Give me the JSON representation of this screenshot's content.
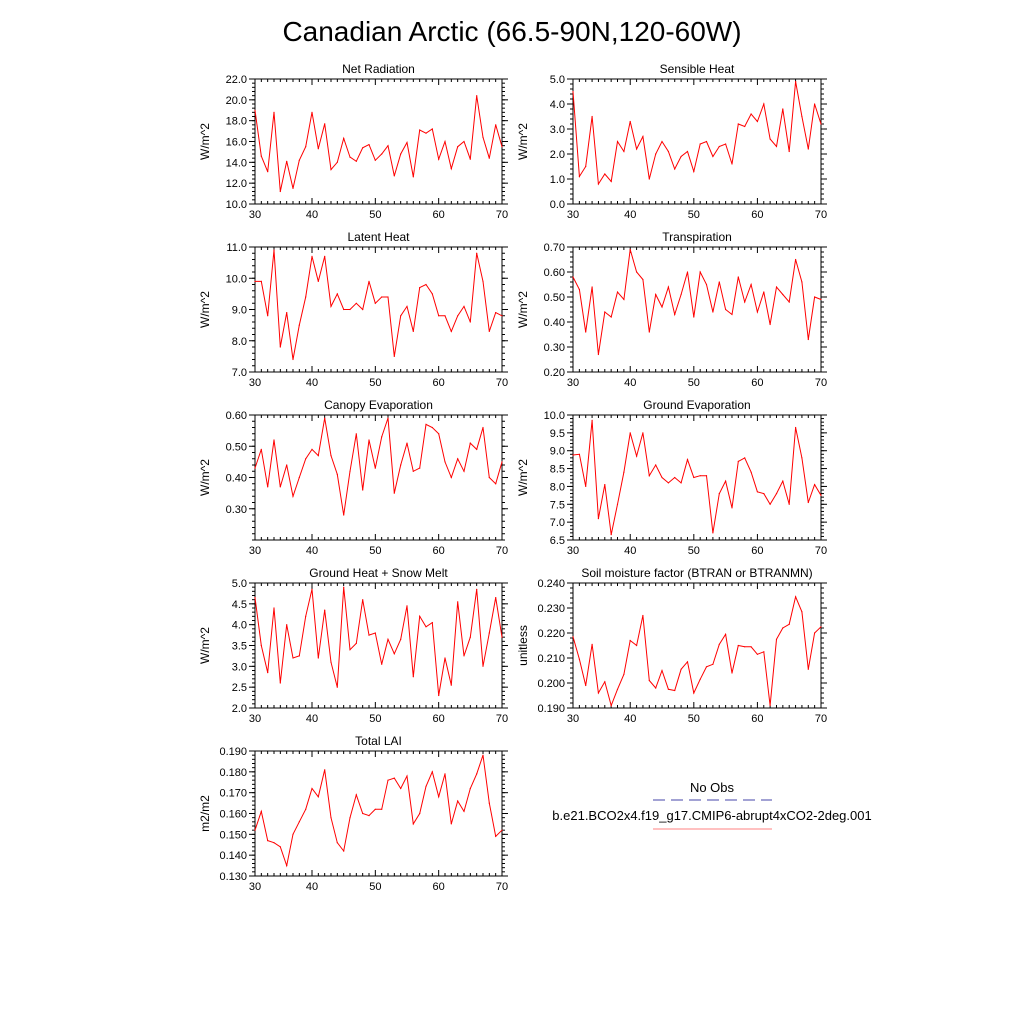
{
  "title": "Canadian Arctic (66.5-90N,120-60W)",
  "chart_data": [
    {
      "type": "line",
      "title": "Net Radiation",
      "ylabel": "W/m^2",
      "xlim": [
        31,
        70
      ],
      "ylim": [
        10.0,
        22.0
      ],
      "yticks": [
        "10.0",
        "12.0",
        "14.0",
        "16.0",
        "18.0",
        "20.0",
        "22.0"
      ],
      "xticks": [
        "30",
        "40",
        "50",
        "60",
        "70"
      ],
      "series": [
        {
          "name": "b.e21.BCO2x4.f19_g17.CMIP6-abrupt4xCO2-2deg.001",
          "color": "#ff0000",
          "x": [
            31,
            32,
            33,
            34,
            35,
            36,
            37,
            38,
            39,
            40,
            41,
            42,
            43,
            44,
            45,
            46,
            47,
            48,
            49,
            50,
            51,
            52,
            53,
            54,
            55,
            56,
            57,
            58,
            59,
            60,
            61,
            62,
            63,
            64,
            65,
            66,
            67,
            68,
            69,
            70
          ],
          "y": [
            19.0,
            14.6,
            13.1,
            18.8,
            11.2,
            14.1,
            11.5,
            14.2,
            15.5,
            18.8,
            15.3,
            17.7,
            13.3,
            14.0,
            16.3,
            14.5,
            14.1,
            15.4,
            15.7,
            14.2,
            14.8,
            15.6,
            12.7,
            14.8,
            15.9,
            12.6,
            17.1,
            16.8,
            17.2,
            14.3,
            16.0,
            13.4,
            15.5,
            16.0,
            14.3,
            20.4,
            16.4,
            14.4,
            17.6,
            15.5
          ]
        }
      ]
    },
    {
      "type": "line",
      "title": "Sensible Heat",
      "ylabel": "W/m^2",
      "xlim": [
        31,
        70
      ],
      "ylim": [
        0.0,
        5.0
      ],
      "yticks": [
        "0.0",
        "1.0",
        "2.0",
        "3.0",
        "4.0",
        "5.0"
      ],
      "xticks": [
        "30",
        "40",
        "50",
        "60",
        "70"
      ],
      "series": [
        {
          "name": "b.e21.BCO2x4.f19_g17.CMIP6-abrupt4xCO2-2deg.001",
          "color": "#ff0000",
          "x": [
            31,
            32,
            33,
            34,
            35,
            36,
            37,
            38,
            39,
            40,
            41,
            42,
            43,
            44,
            45,
            46,
            47,
            48,
            49,
            50,
            51,
            52,
            53,
            54,
            55,
            56,
            57,
            58,
            59,
            60,
            61,
            62,
            63,
            64,
            65,
            66,
            67,
            68,
            69,
            70
          ],
          "y": [
            4.5,
            1.1,
            1.5,
            3.5,
            0.8,
            1.2,
            0.9,
            2.5,
            2.1,
            3.3,
            2.2,
            2.7,
            1.0,
            2.0,
            2.5,
            2.1,
            1.4,
            1.9,
            2.1,
            1.3,
            2.4,
            2.5,
            1.9,
            2.3,
            2.4,
            1.6,
            3.2,
            3.1,
            3.6,
            3.3,
            4.0,
            2.6,
            2.3,
            3.8,
            2.1,
            4.9,
            3.5,
            2.2,
            4.0,
            3.2
          ]
        }
      ]
    },
    {
      "type": "line",
      "title": "Latent Heat",
      "ylabel": "W/m^2",
      "xlim": [
        31,
        70
      ],
      "ylim": [
        7.0,
        11.0
      ],
      "yticks": [
        "7.0",
        "8.0",
        "9.0",
        "10.0",
        "11.0"
      ],
      "xticks": [
        "30",
        "40",
        "50",
        "60",
        "70"
      ],
      "series": [
        {
          "name": "b.e21.BCO2x4.f19_g17.CMIP6-abrupt4xCO2-2deg.001",
          "color": "#ff0000",
          "x": [
            31,
            32,
            33,
            34,
            35,
            36,
            37,
            38,
            39,
            40,
            41,
            42,
            43,
            44,
            45,
            46,
            47,
            48,
            49,
            50,
            51,
            52,
            53,
            54,
            55,
            56,
            57,
            58,
            59,
            60,
            61,
            62,
            63,
            64,
            65,
            66,
            67,
            68,
            69,
            70
          ],
          "y": [
            9.9,
            9.9,
            8.8,
            10.9,
            7.8,
            8.9,
            7.4,
            8.5,
            9.4,
            10.7,
            9.9,
            10.7,
            9.1,
            9.5,
            9.0,
            9.0,
            9.2,
            9.0,
            9.9,
            9.2,
            9.4,
            9.4,
            7.5,
            8.8,
            9.1,
            8.3,
            9.7,
            9.8,
            9.5,
            8.8,
            8.8,
            8.3,
            8.8,
            9.1,
            8.6,
            10.8,
            9.9,
            8.3,
            8.9,
            8.8
          ]
        }
      ]
    },
    {
      "type": "line",
      "title": "Transpiration",
      "ylabel": "W/m^2",
      "xlim": [
        31,
        70
      ],
      "ylim": [
        0.2,
        0.7
      ],
      "yticks": [
        "0.20",
        "0.30",
        "0.40",
        "0.50",
        "0.60",
        "0.70"
      ],
      "xticks": [
        "30",
        "40",
        "50",
        "60",
        "70"
      ],
      "series": [
        {
          "name": "b.e21.BCO2x4.f19_g17.CMIP6-abrupt4xCO2-2deg.001",
          "color": "#ff0000",
          "x": [
            31,
            32,
            33,
            34,
            35,
            36,
            37,
            38,
            39,
            40,
            41,
            42,
            43,
            44,
            45,
            46,
            47,
            48,
            49,
            50,
            51,
            52,
            53,
            54,
            55,
            56,
            57,
            58,
            59,
            60,
            61,
            62,
            63,
            64,
            65,
            66,
            67,
            68,
            69,
            70
          ],
          "y": [
            0.58,
            0.53,
            0.36,
            0.54,
            0.27,
            0.44,
            0.42,
            0.52,
            0.49,
            0.69,
            0.6,
            0.57,
            0.36,
            0.51,
            0.46,
            0.54,
            0.43,
            0.51,
            0.6,
            0.42,
            0.6,
            0.55,
            0.44,
            0.56,
            0.45,
            0.43,
            0.58,
            0.48,
            0.55,
            0.44,
            0.52,
            0.39,
            0.54,
            0.51,
            0.48,
            0.65,
            0.56,
            0.33,
            0.5,
            0.49
          ]
        }
      ]
    },
    {
      "type": "line",
      "title": "Canopy Evaporation",
      "ylabel": "W/m^2",
      "xlim": [
        31,
        70
      ],
      "ylim": [
        0.2,
        0.6
      ],
      "yticks": [
        "0.30",
        "0.40",
        "0.50",
        "0.60"
      ],
      "xticks": [
        "30",
        "40",
        "50",
        "60",
        "70"
      ],
      "series": [
        {
          "name": "b.e21.BCO2x4.f19_g17.CMIP6-abrupt4xCO2-2deg.001",
          "color": "#ff0000",
          "x": [
            31,
            32,
            33,
            34,
            35,
            36,
            37,
            38,
            39,
            40,
            41,
            42,
            43,
            44,
            45,
            46,
            47,
            48,
            49,
            50,
            51,
            52,
            53,
            54,
            55,
            56,
            57,
            58,
            59,
            60,
            61,
            62,
            63,
            64,
            65,
            66,
            67,
            68,
            69,
            70
          ],
          "y": [
            0.43,
            0.49,
            0.37,
            0.52,
            0.37,
            0.44,
            0.34,
            0.4,
            0.46,
            0.49,
            0.47,
            0.59,
            0.47,
            0.41,
            0.28,
            0.42,
            0.54,
            0.36,
            0.52,
            0.43,
            0.53,
            0.59,
            0.35,
            0.44,
            0.51,
            0.42,
            0.43,
            0.57,
            0.56,
            0.54,
            0.45,
            0.4,
            0.46,
            0.42,
            0.51,
            0.49,
            0.56,
            0.4,
            0.38,
            0.45
          ]
        }
      ]
    },
    {
      "type": "line",
      "title": "Ground Evaporation",
      "ylabel": "W/m^2",
      "xlim": [
        31,
        70
      ],
      "ylim": [
        6.5,
        10.0
      ],
      "yticks": [
        "6.5",
        "7.0",
        "7.5",
        "8.0",
        "8.5",
        "9.0",
        "9.5",
        "10.0"
      ],
      "xticks": [
        "30",
        "40",
        "50",
        "60",
        "70"
      ],
      "series": [
        {
          "name": "b.e21.BCO2x4.f19_g17.CMIP6-abrupt4xCO2-2deg.001",
          "color": "#ff0000",
          "x": [
            31,
            32,
            33,
            34,
            35,
            36,
            37,
            38,
            39,
            40,
            41,
            42,
            43,
            44,
            45,
            46,
            47,
            48,
            49,
            50,
            51,
            52,
            53,
            54,
            55,
            56,
            57,
            58,
            59,
            60,
            61,
            62,
            63,
            64,
            65,
            66,
            67,
            68,
            69,
            70
          ],
          "y": [
            8.88,
            8.9,
            8.0,
            9.85,
            7.1,
            8.05,
            6.65,
            7.5,
            8.4,
            9.5,
            8.85,
            9.5,
            8.3,
            8.6,
            8.25,
            8.1,
            8.25,
            8.1,
            8.75,
            8.25,
            8.3,
            8.3,
            6.7,
            7.8,
            8.15,
            7.4,
            8.7,
            8.8,
            8.4,
            7.85,
            7.8,
            7.5,
            7.8,
            8.15,
            7.5,
            9.65,
            8.8,
            7.55,
            8.05,
            7.75
          ]
        }
      ]
    },
    {
      "type": "line",
      "title": "Ground Heat + Snow Melt",
      "ylabel": "W/m^2",
      "xlim": [
        31,
        70
      ],
      "ylim": [
        2.0,
        5.0
      ],
      "yticks": [
        "2.0",
        "2.5",
        "3.0",
        "3.5",
        "4.0",
        "4.5",
        "5.0"
      ],
      "xticks": [
        "30",
        "40",
        "50",
        "60",
        "70"
      ],
      "series": [
        {
          "name": "b.e21.BCO2x4.f19_g17.CMIP6-abrupt4xCO2-2deg.001",
          "color": "#ff0000",
          "x": [
            31,
            32,
            33,
            34,
            35,
            36,
            37,
            38,
            39,
            40,
            41,
            42,
            43,
            44,
            45,
            46,
            47,
            48,
            49,
            50,
            51,
            52,
            53,
            54,
            55,
            56,
            57,
            58,
            59,
            60,
            61,
            62,
            63,
            64,
            65,
            66,
            67,
            68,
            69,
            70
          ],
          "y": [
            4.65,
            3.5,
            2.85,
            4.4,
            2.6,
            4.0,
            3.2,
            3.25,
            4.2,
            4.85,
            3.2,
            4.35,
            3.1,
            2.5,
            4.9,
            3.4,
            3.55,
            4.6,
            3.75,
            3.8,
            3.05,
            3.65,
            3.3,
            3.65,
            4.45,
            2.75,
            4.2,
            3.95,
            4.05,
            2.3,
            3.2,
            2.55,
            4.55,
            3.25,
            3.7,
            4.85,
            3.0,
            3.8,
            4.65,
            3.7
          ]
        }
      ]
    },
    {
      "type": "line",
      "title": "Soil moisture factor (BTRAN or BTRANMN)",
      "ylabel": "unitless",
      "xlim": [
        31,
        70
      ],
      "ylim": [
        0.19,
        0.24
      ],
      "yticks": [
        "0.190",
        "0.200",
        "0.210",
        "0.220",
        "0.230",
        "0.240"
      ],
      "xticks": [
        "30",
        "40",
        "50",
        "60",
        "70"
      ],
      "series": [
        {
          "name": "b.e21.BCO2x4.f19_g17.CMIP6-abrupt4xCO2-2deg.001",
          "color": "#ff0000",
          "x": [
            31,
            32,
            33,
            34,
            35,
            36,
            37,
            38,
            39,
            40,
            41,
            42,
            43,
            44,
            45,
            46,
            47,
            48,
            49,
            50,
            51,
            52,
            53,
            54,
            55,
            56,
            57,
            58,
            59,
            60,
            61,
            62,
            63,
            64,
            65,
            66,
            67,
            68,
            69,
            70
          ],
          "y": [
            0.2185,
            0.2095,
            0.199,
            0.2155,
            0.196,
            0.2005,
            0.191,
            0.1975,
            0.2035,
            0.217,
            0.215,
            0.227,
            0.201,
            0.198,
            0.205,
            0.1975,
            0.197,
            0.2055,
            0.2085,
            0.196,
            0.2015,
            0.2065,
            0.2075,
            0.2155,
            0.2195,
            0.204,
            0.215,
            0.2145,
            0.2145,
            0.2115,
            0.2125,
            0.191,
            0.2175,
            0.222,
            0.2235,
            0.2345,
            0.2285,
            0.2055,
            0.22,
            0.2225
          ]
        }
      ]
    },
    {
      "type": "line",
      "title": "Total LAI",
      "ylabel": "m2/m2",
      "xlim": [
        31,
        70
      ],
      "ylim": [
        0.13,
        0.19
      ],
      "yticks": [
        "0.130",
        "0.140",
        "0.150",
        "0.160",
        "0.170",
        "0.180",
        "0.190"
      ],
      "xticks": [
        "30",
        "40",
        "50",
        "60",
        "70"
      ],
      "series": [
        {
          "name": "b.e21.BCO2x4.f19_g17.CMIP6-abrupt4xCO2-2deg.001",
          "color": "#ff0000",
          "x": [
            31,
            32,
            33,
            34,
            35,
            36,
            37,
            38,
            39,
            40,
            41,
            42,
            43,
            44,
            45,
            46,
            47,
            48,
            49,
            50,
            51,
            52,
            53,
            54,
            55,
            56,
            57,
            58,
            59,
            60,
            61,
            62,
            63,
            64,
            65,
            66,
            67,
            68,
            69,
            70
          ],
          "y": [
            0.152,
            0.161,
            0.147,
            0.146,
            0.144,
            0.135,
            0.15,
            0.156,
            0.162,
            0.172,
            0.168,
            0.181,
            0.158,
            0.146,
            0.142,
            0.158,
            0.169,
            0.16,
            0.159,
            0.162,
            0.162,
            0.176,
            0.177,
            0.172,
            0.178,
            0.155,
            0.16,
            0.173,
            0.18,
            0.168,
            0.179,
            0.155,
            0.166,
            0.161,
            0.172,
            0.179,
            0.188,
            0.165,
            0.149,
            0.152
          ]
        }
      ]
    }
  ],
  "legend": {
    "entries": [
      {
        "label": "No Obs",
        "color": "#4444aa",
        "style": "dashed"
      },
      {
        "label": "b.e21.BCO2x4.f19_g17.CMIP6-abrupt4xCO2-2deg.001",
        "color": "#ff8080",
        "style": "solid"
      }
    ]
  }
}
